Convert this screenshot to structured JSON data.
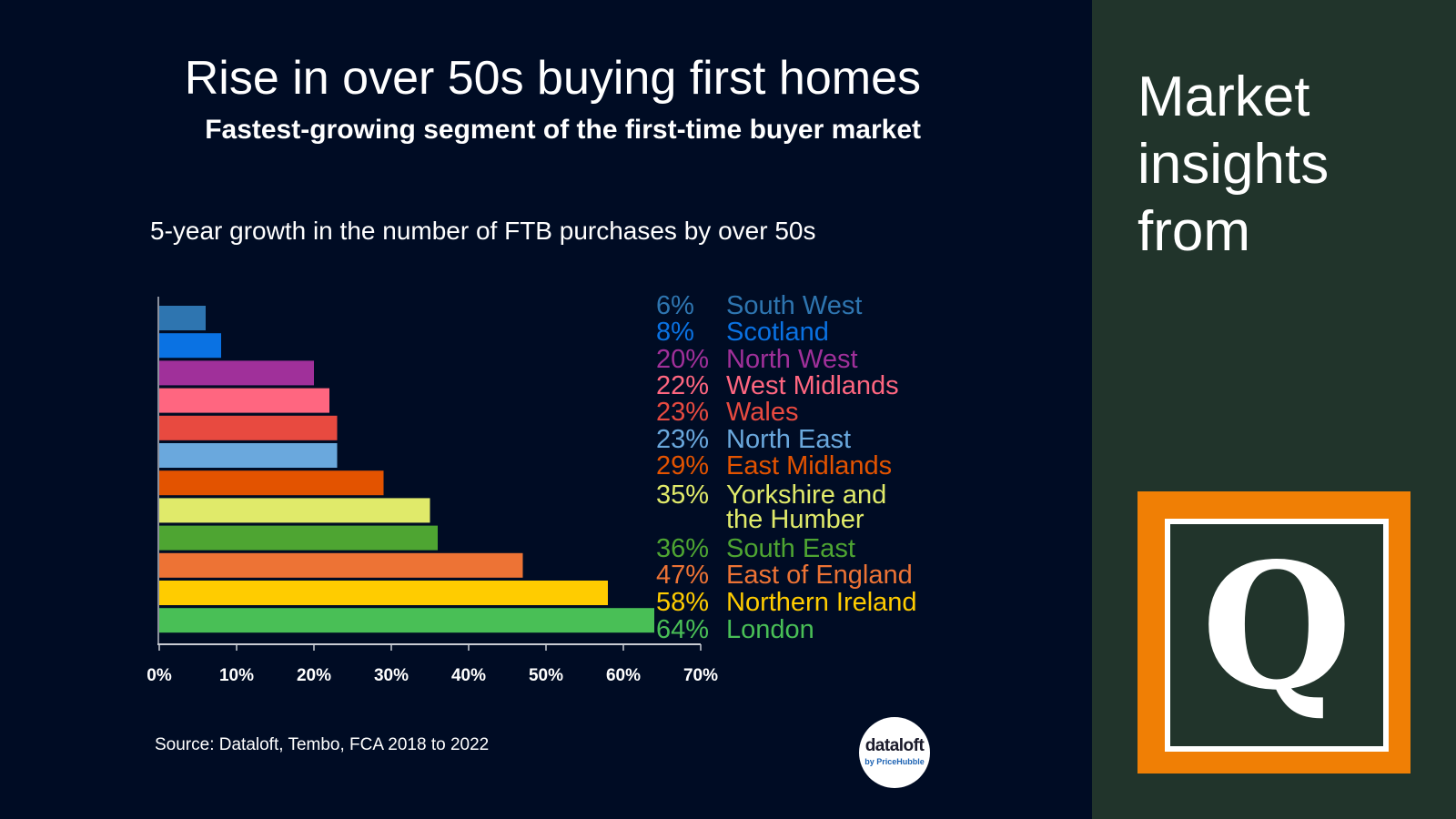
{
  "header": {
    "title": "Rise in over 50s buying first homes",
    "subtitle": "Fastest-growing segment of the first-time buyer market"
  },
  "chart_heading": "5-year growth in the number of FTB purchases by over 50s",
  "source": "Source: Dataloft, Tembo, FCA 2018 to 2022",
  "logo": {
    "main": "dataloft",
    "sub": "by PriceHubble"
  },
  "side": {
    "heading": "Market\ninsights\nfrom",
    "q_letter": "Q"
  },
  "chart_data": {
    "type": "bar",
    "orientation": "horizontal",
    "title": "5-year growth in the number of FTB purchases by over 50s",
    "xlim": [
      0,
      70
    ],
    "x_ticks": [
      "0%",
      "10%",
      "20%",
      "30%",
      "40%",
      "50%",
      "60%",
      "70%"
    ],
    "grid": false,
    "legend": "right",
    "categories": [
      "South West",
      "Scotland",
      "North West",
      "West Midlands",
      "Wales",
      "North East",
      "East Midlands",
      "Yorkshire and the Humber",
      "South East",
      "East of England",
      "Northern Ireland",
      "London"
    ],
    "values": [
      6,
      8,
      20,
      22,
      23,
      23,
      29,
      35,
      36,
      47,
      58,
      64
    ],
    "value_labels": [
      "6%",
      "8%",
      "20%",
      "22%",
      "23%",
      "23%",
      "29%",
      "35%",
      "36%",
      "47%",
      "58%",
      "64%"
    ],
    "label_lines": [
      [
        "South West"
      ],
      [
        "Scotland"
      ],
      [
        "North West"
      ],
      [
        "West Midlands"
      ],
      [
        "Wales"
      ],
      [
        "North East"
      ],
      [
        "East Midlands"
      ],
      [
        "Yorkshire and",
        "the Humber"
      ],
      [
        "South East"
      ],
      [
        "East of England"
      ],
      [
        "Northern Ireland"
      ],
      [
        "London"
      ]
    ],
    "colors": [
      "#2e75b0",
      "#0a72e3",
      "#a0309a",
      "#ff6680",
      "#e84a40",
      "#6aa8dd",
      "#e35300",
      "#e0ea6a",
      "#4ea532",
      "#ed7335",
      "#ffcc00",
      "#49bf56"
    ]
  }
}
